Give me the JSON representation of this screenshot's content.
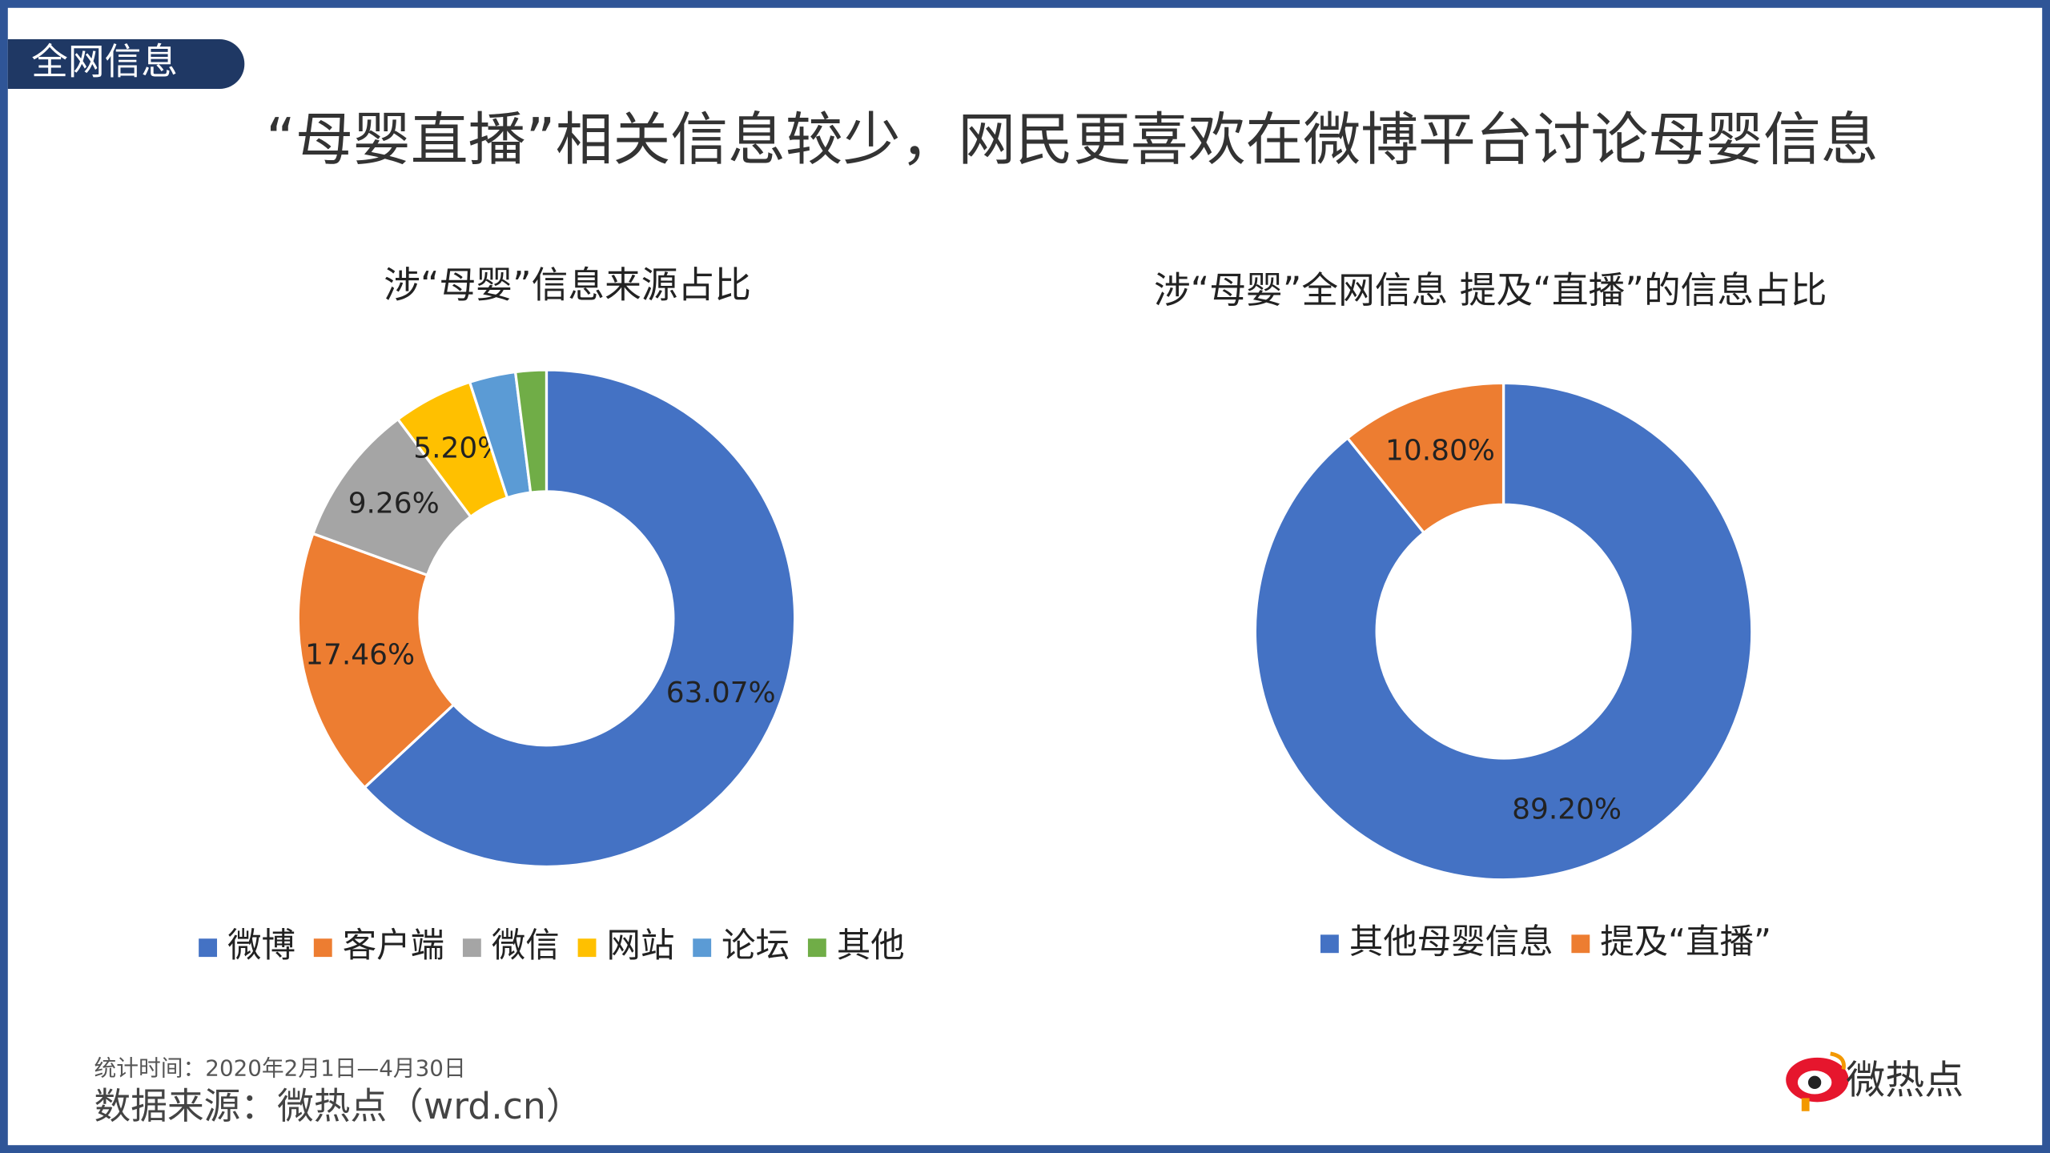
{
  "header": "全网信息",
  "title": "“母婴直播”相关信息较少，网民更喜欢在微博平台讨论母婴信息",
  "chart_data": [
    {
      "type": "donut",
      "title": "涉“母婴”信息来源占比",
      "categories": [
        "微博",
        "客户端",
        "微信",
        "网站",
        "论坛",
        "其他"
      ],
      "values": [
        63.07,
        17.46,
        9.26,
        5.2,
        3.0,
        2.0
      ],
      "value_labels": [
        "63.07%",
        "17.46%",
        "9.26%",
        "5.20%",
        null,
        null
      ],
      "colors": [
        "#4472c4",
        "#ed7d31",
        "#a5a5a5",
        "#ffc000",
        "#5b9bd5",
        "#70ad47"
      ]
    },
    {
      "type": "donut",
      "title": "涉“母婴”全网信息 提及“直播”的信息占比",
      "categories": [
        "其他母婴信息",
        "提及“直播”"
      ],
      "values": [
        89.2,
        10.8
      ],
      "value_labels": [
        "89.20%",
        "10.80%"
      ],
      "colors": [
        "#4472c4",
        "#ed7d31"
      ]
    }
  ],
  "footer": {
    "period": "统计时间：2020年2月1日—4月30日",
    "source": "数据来源：微热点（wrd.cn）",
    "logo": "微热点"
  }
}
